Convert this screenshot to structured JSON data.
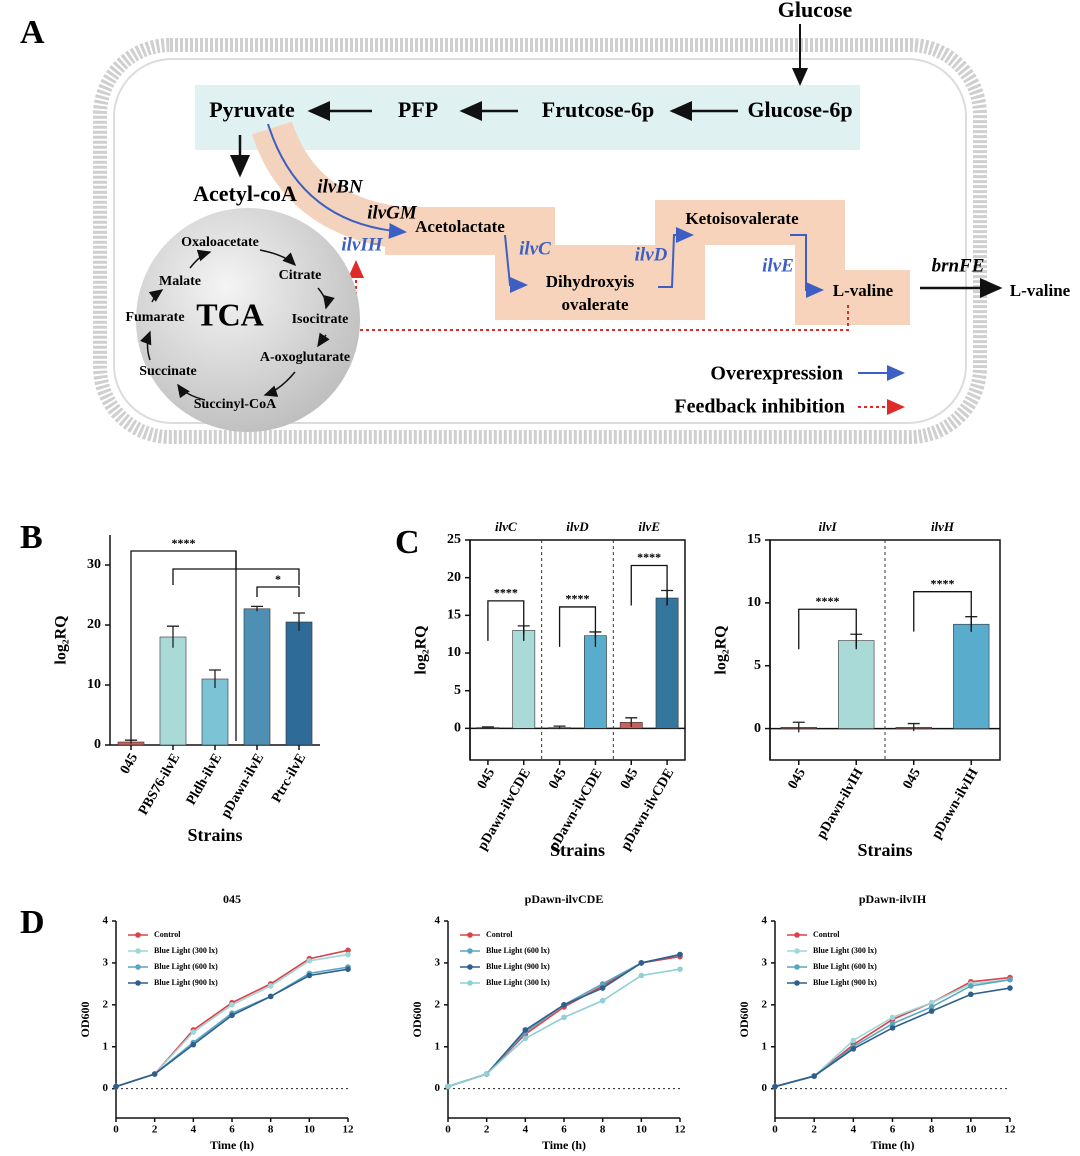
{
  "diagram": {
    "panel": "A",
    "glucose": "Glucose",
    "nodes": [
      "Pyruvate",
      "PFP",
      "Frutcose-6p",
      "Glucose-6p",
      "Acetyl-coA",
      "Acetolactate",
      "Dihydroxyis",
      "ovalerate",
      "Ketoisovalerate",
      "L-valine",
      "L-valine"
    ],
    "genes": [
      "ilvBN",
      "ilvGM",
      "ilvIH",
      "ilvC",
      "ilvD",
      "ilvE",
      "brnFE"
    ],
    "tca": {
      "label": "TCA",
      "metabolites": [
        "Oxaloacetate",
        "Citrate",
        "Isocitrate",
        "A-oxoglutarate",
        "Succinyl-CoA",
        "Succinate",
        "Fumarate",
        "Malate"
      ]
    },
    "legend": [
      "Overexpression",
      "Feedback inhibition"
    ]
  },
  "chart_data": [
    {
      "type": "bar",
      "panel": "B",
      "ylabel": "log₂RQ",
      "xlabel": "Strains",
      "categories": [
        "045",
        "PBS76-ilvE",
        "Pldh-ilvE",
        "pDawn-ilvE",
        "Ptrc-ilvE"
      ],
      "values": [
        0.5,
        18,
        11,
        22.7,
        20.5
      ],
      "errors": [
        0.3,
        1.8,
        1.5,
        0.4,
        1.5
      ],
      "colors": [
        "#c9605b",
        "#a9dad8",
        "#7cc3d6",
        "#4d90b3",
        "#2f6b99"
      ],
      "ylim": [
        0,
        35
      ],
      "yticks": [
        0,
        10,
        20,
        30
      ],
      "significance": [
        "****",
        "*"
      ]
    },
    {
      "type": "bar",
      "panel": "C",
      "ylabel": "log₂RQ",
      "xlabel": "Strains",
      "groups": [
        "ilvC",
        "ilvD",
        "ilvE"
      ],
      "categories": [
        "045",
        "pDawn-ilvCDE",
        "045",
        "pDawn-ilvCDE",
        "045",
        "pDawn-ilvCDE"
      ],
      "values": [
        0.1,
        13,
        0.1,
        12.3,
        0.8,
        17.3
      ],
      "errors": [
        0.1,
        0.6,
        0.2,
        0.5,
        0.6,
        1
      ],
      "colors": [
        "#c9605b",
        "#a9dad8",
        "#c9605b",
        "#5aaccc",
        "#c9605b",
        "#34769e"
      ],
      "ylim": [
        -4.2,
        25
      ],
      "yticks": [
        0,
        5,
        10,
        15,
        20,
        25
      ],
      "box": true,
      "significance": [
        "****",
        "****",
        "****"
      ]
    },
    {
      "type": "bar",
      "ylabel": "log₂RQ",
      "xlabel": "Strains",
      "groups": [
        "ilvI",
        "ilvH"
      ],
      "categories": [
        "045",
        "pDawn-ilvIH",
        "045",
        "pDawn-ilvIH"
      ],
      "values": [
        0.1,
        7,
        0.1,
        8.3
      ],
      "errors": [
        0.4,
        0.5,
        0.3,
        0.6
      ],
      "colors": [
        "#c9605b",
        "#a9dad8",
        "#c9605b",
        "#5aaccc"
      ],
      "ylim": [
        -2.5,
        15
      ],
      "yticks": [
        0,
        5,
        10,
        15
      ],
      "box": true,
      "significance": [
        "****",
        "****"
      ]
    },
    {
      "type": "line",
      "panel": "D",
      "title": "045",
      "xlabel": "Time (h)",
      "ylabel": "OD600",
      "x": [
        0,
        2,
        4,
        6,
        8,
        10,
        12
      ],
      "xlim": [
        0,
        12
      ],
      "xticks": [
        0,
        2,
        4,
        6,
        8,
        10,
        12
      ],
      "ylim": [
        -0.7,
        4
      ],
      "yticks": [
        0,
        1,
        2,
        3,
        4
      ],
      "series": [
        {
          "name": "Control",
          "color": "#d9434a",
          "values": [
            0.05,
            0.35,
            1.4,
            2.05,
            2.5,
            3.1,
            3.3
          ]
        },
        {
          "name": "Blue Light (300 lx)",
          "color": "#9fd6d8",
          "values": [
            0.05,
            0.35,
            1.35,
            2.0,
            2.45,
            3.05,
            3.2
          ]
        },
        {
          "name": "Blue Light (600 lx)",
          "color": "#5aa6c0",
          "values": [
            0.05,
            0.35,
            1.1,
            1.8,
            2.2,
            2.75,
            2.9
          ]
        },
        {
          "name": "Blue Light (900 lx)",
          "color": "#2f5f8c",
          "values": [
            0.05,
            0.35,
            1.05,
            1.75,
            2.2,
            2.7,
            2.85
          ]
        }
      ]
    },
    {
      "type": "line",
      "title": "pDawn-ilvCDE",
      "xlabel": "Time (h)",
      "ylabel": "OD600",
      "x": [
        0,
        2,
        4,
        6,
        8,
        10,
        12
      ],
      "xlim": [
        0,
        12
      ],
      "xticks": [
        0,
        2,
        4,
        6,
        8,
        10,
        12
      ],
      "ylim": [
        -0.7,
        4
      ],
      "yticks": [
        0,
        1,
        2,
        3,
        4
      ],
      "series": [
        {
          "name": "Control",
          "color": "#d9434a",
          "values": [
            0.05,
            0.35,
            1.3,
            1.95,
            2.45,
            3.0,
            3.15
          ]
        },
        {
          "name": "Blue Light (600 lx)",
          "color": "#5aa6c0",
          "values": [
            0.05,
            0.35,
            1.35,
            2.0,
            2.5,
            3.0,
            3.2
          ]
        },
        {
          "name": "Blue Light (900 lx)",
          "color": "#2f5f8c",
          "values": [
            0.05,
            0.35,
            1.4,
            2.0,
            2.4,
            3.0,
            3.2
          ]
        },
        {
          "name": "Blue Light (300 lx)",
          "color": "#8fcfd6",
          "values": [
            0.05,
            0.35,
            1.2,
            1.7,
            2.1,
            2.7,
            2.85
          ]
        }
      ]
    },
    {
      "type": "line",
      "title": "pDawn-ilvIH",
      "xlabel": "Time (h)",
      "ylabel": "OD600",
      "x": [
        0,
        2,
        4,
        6,
        8,
        10,
        12
      ],
      "xlim": [
        0,
        12
      ],
      "xticks": [
        0,
        2,
        4,
        6,
        8,
        10,
        12
      ],
      "ylim": [
        -0.7,
        4
      ],
      "yticks": [
        0,
        1,
        2,
        3,
        4
      ],
      "series": [
        {
          "name": "Control",
          "color": "#d9434a",
          "values": [
            0.05,
            0.3,
            1.05,
            1.65,
            2.05,
            2.55,
            2.65
          ]
        },
        {
          "name": "Blue Light (300 lx)",
          "color": "#9fd6d8",
          "values": [
            0.05,
            0.3,
            1.15,
            1.7,
            2.05,
            2.5,
            2.6
          ]
        },
        {
          "name": "Blue Light (600 lx)",
          "color": "#5aa6c0",
          "values": [
            0.05,
            0.3,
            1.0,
            1.55,
            1.95,
            2.45,
            2.6
          ]
        },
        {
          "name": "Blue Light (900 lx)",
          "color": "#2f5f8c",
          "values": [
            0.05,
            0.3,
            0.95,
            1.45,
            1.85,
            2.25,
            2.4
          ]
        }
      ]
    }
  ]
}
